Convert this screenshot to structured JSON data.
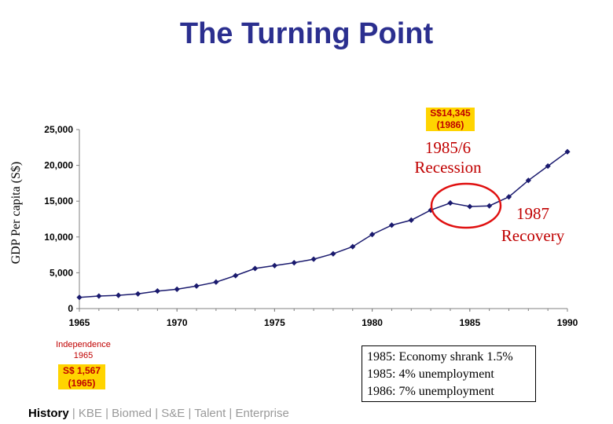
{
  "title": "The Turning Point",
  "colors": {
    "title": "#2b2f8f",
    "line": "#1a1a6e",
    "accent_red": "#c00000",
    "highlight": "#ffd400"
  },
  "chart_data": {
    "type": "line",
    "title": "The Turning Point",
    "xlabel": "",
    "ylabel": "GDP Per capita (S$)",
    "xlim": [
      1965,
      1990
    ],
    "ylim": [
      0,
      25000
    ],
    "x_ticks": [
      "1965",
      "1970",
      "1975",
      "1980",
      "1985",
      "1990"
    ],
    "y_ticks": [
      "0",
      "5,000",
      "10,000",
      "15,000",
      "20,000",
      "25,000"
    ],
    "x": [
      1965,
      1966,
      1967,
      1968,
      1969,
      1970,
      1971,
      1972,
      1973,
      1974,
      1975,
      1976,
      1977,
      1978,
      1979,
      1980,
      1981,
      1982,
      1983,
      1984,
      1985,
      1986,
      1987,
      1988,
      1989,
      1990
    ],
    "series": [
      {
        "name": "GDP per capita",
        "values": [
          1567,
          1750,
          1850,
          2050,
          2450,
          2700,
          3150,
          3700,
          4600,
          5600,
          6000,
          6400,
          6900,
          7650,
          8650,
          10350,
          11650,
          12350,
          13750,
          14750,
          14250,
          14345,
          15600,
          17900,
          19900,
          21900
        ]
      }
    ],
    "grid": false
  },
  "annotations": {
    "peak_value": "S$14,345",
    "peak_year": "(1986)",
    "recession_line1": "1985/6",
    "recession_line2": "Recession",
    "recovery_line1": "1987",
    "recovery_line2": "Recovery",
    "independence_line1": "Independence",
    "independence_line2": "1965",
    "start_value": "S$ 1,567",
    "start_year": "(1965)"
  },
  "notes": [
    "1985: Economy shrank 1.5%",
    "1985: 4% unemployment",
    "1986: 7% unemployment"
  ],
  "nav": {
    "current": "History",
    "sep": " | ",
    "rest": "KBE | Biomed | S&E | Talent | Enterprise"
  }
}
